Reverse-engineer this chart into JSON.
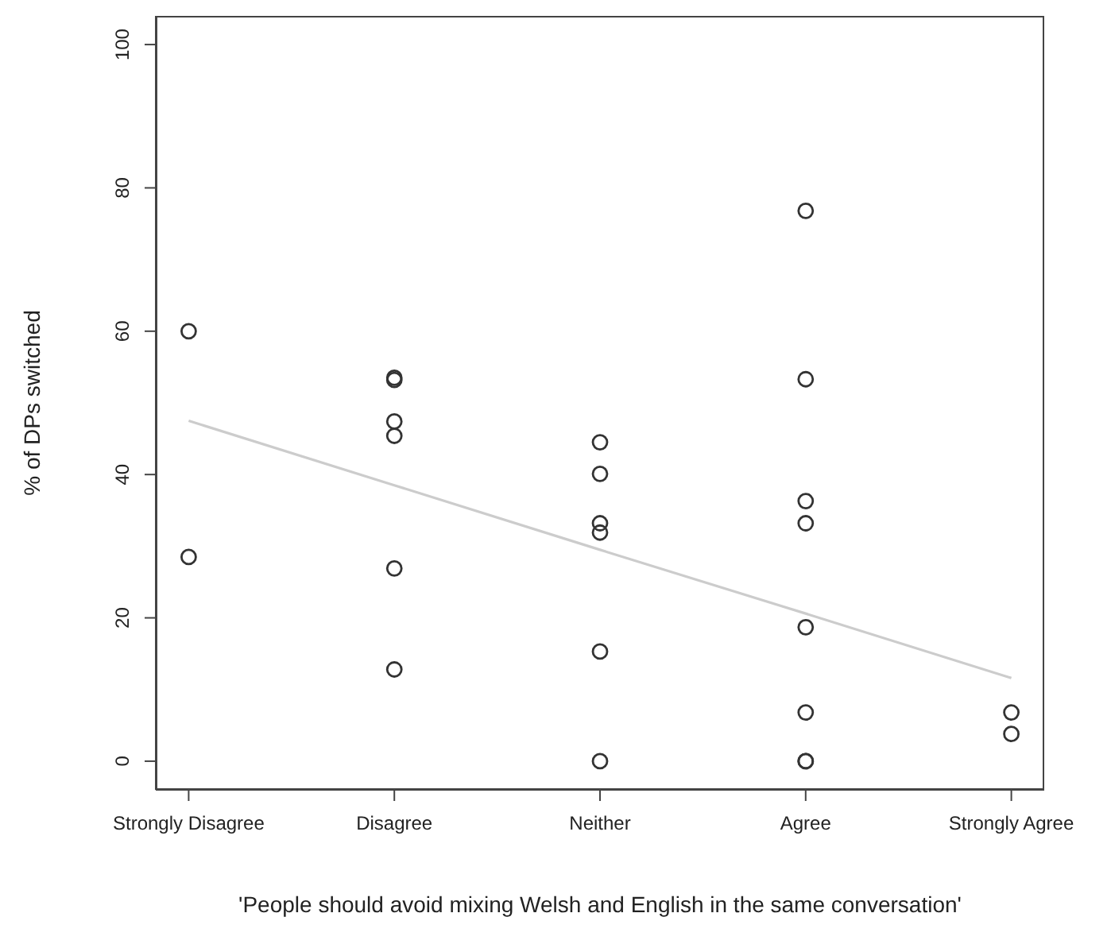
{
  "chart_data": {
    "type": "scatter",
    "xlabel": "'People should avoid mixing Welsh and English in the same conversation'",
    "ylabel": "% of DPs switched",
    "categories": [
      "Strongly Disagree",
      "Disagree",
      "Neither",
      "Agree",
      "Strongly Agree"
    ],
    "ylim": [
      -4,
      104
    ],
    "yticks": [
      0,
      20,
      40,
      60,
      80,
      100
    ],
    "series": [
      {
        "type": "scatter",
        "marker": "circle",
        "color": "#333333",
        "x": [
          "Strongly Disagree",
          "Strongly Disagree",
          "Disagree",
          "Disagree",
          "Disagree",
          "Disagree",
          "Disagree",
          "Disagree",
          "Neither",
          "Neither",
          "Neither",
          "Neither",
          "Neither",
          "Neither",
          "Agree",
          "Agree",
          "Agree",
          "Agree",
          "Agree",
          "Agree",
          "Agree",
          "Agree",
          "Strongly Agree",
          "Strongly Agree"
        ],
        "values": [
          60.0,
          28.5,
          53.5,
          53.2,
          47.4,
          45.4,
          26.9,
          12.8,
          44.5,
          40.1,
          33.2,
          31.9,
          15.3,
          0,
          76.8,
          53.3,
          36.3,
          33.2,
          18.7,
          6.8,
          0,
          0,
          6.8,
          3.8
        ]
      },
      {
        "type": "line",
        "marker": "none",
        "color": "#cccccc",
        "x": [
          "Strongly Disagree",
          "Disagree",
          "Neither",
          "Agree",
          "Strongly Agree"
        ],
        "values": [
          47.5,
          38.5,
          29.5,
          20.6,
          11.6
        ]
      }
    ]
  }
}
